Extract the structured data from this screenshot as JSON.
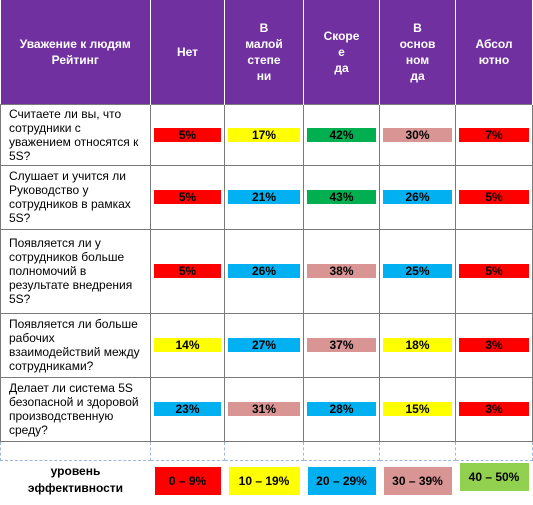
{
  "header": {
    "title_line1": "Уважение к людям",
    "title_line2": "Рейтинг",
    "columns": [
      "Нет",
      "В\nмалой\nстепе\nни",
      "Скоре\nе\nда",
      "В\nоснов\nном\nда",
      "Абсол\nютно"
    ]
  },
  "rows": [
    {
      "question": "Считаете ли вы, что сотрудники с уважением относятся к 5S?",
      "values": [
        "5%",
        "17%",
        "42%",
        "30%",
        "7%"
      ],
      "colors": [
        "red",
        "yellow",
        "green",
        "pink",
        "red"
      ]
    },
    {
      "question": "Слушает и учится ли Руководство у сотрудников в рамках 5S?",
      "values": [
        "5%",
        "21%",
        "43%",
        "26%",
        "5%"
      ],
      "colors": [
        "red",
        "blue",
        "green",
        "blue",
        "red"
      ]
    },
    {
      "question": "Появляется ли у сотрудников больше полномочий в результате внедрения 5S?",
      "values": [
        "5%",
        "26%",
        "38%",
        "25%",
        "5%"
      ],
      "colors": [
        "red",
        "blue",
        "pink",
        "blue",
        "red"
      ]
    },
    {
      "question": "Появляется ли больше рабочих взаимодействий между сотрудниками?",
      "values": [
        "14%",
        "27%",
        "37%",
        "18%",
        "3%"
      ],
      "colors": [
        "yellow",
        "blue",
        "pink",
        "yellow",
        "red"
      ]
    },
    {
      "question": "Делает ли система 5S безопасной и здоровой производственную среду?",
      "values": [
        "23%",
        "31%",
        "28%",
        "15%",
        "3%"
      ],
      "colors": [
        "blue",
        "pink",
        "blue",
        "yellow",
        "red"
      ]
    }
  ],
  "legend": {
    "label_line1": "уровень",
    "label_line2": "эффективности",
    "items": [
      {
        "text": "0 – 9%",
        "color": "red"
      },
      {
        "text": "10 – 19%",
        "color": "yellow"
      },
      {
        "text": "20 – 29%",
        "color": "blue"
      },
      {
        "text": "30 – 39%",
        "color": "pink"
      },
      {
        "text": "40 – 50%",
        "color": "lgreen"
      }
    ]
  },
  "palette": {
    "red": "#ff0000",
    "yellow": "#ffff00",
    "blue": "#00b0f0",
    "green": "#00b050",
    "pink": "#d99594",
    "lgreen": "#92d050",
    "header_purple": "#7030a0"
  }
}
